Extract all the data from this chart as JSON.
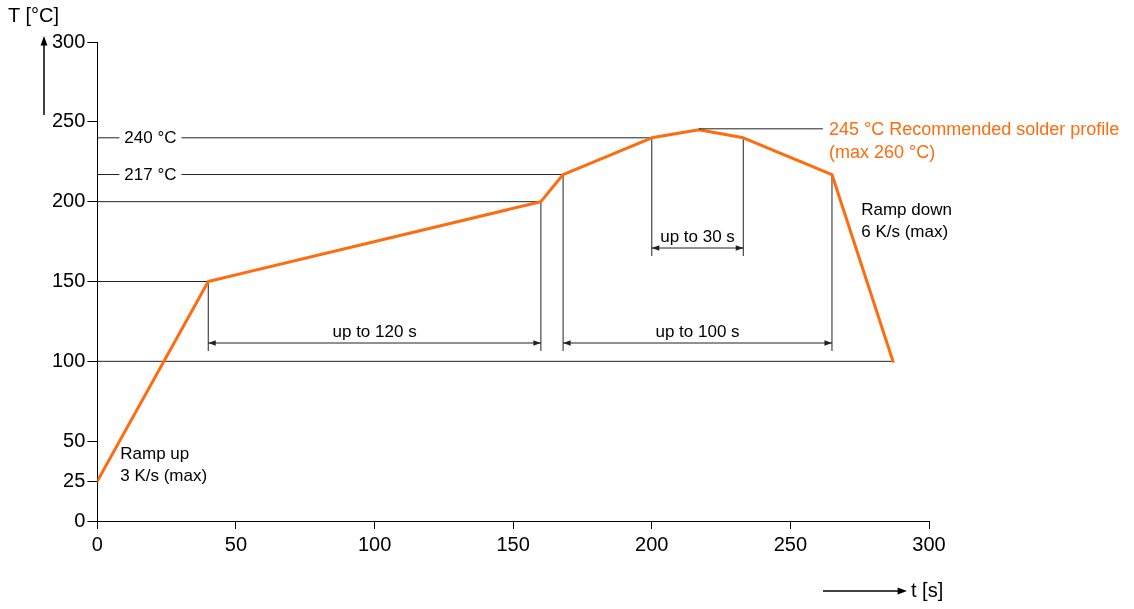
{
  "chart_data": {
    "type": "line",
    "xlabel": "t [s]",
    "ylabel": "T [°C]",
    "x": [
      0,
      40,
      160,
      168,
      200,
      217,
      233,
      265,
      287
    ],
    "series": [
      {
        "name": "245 °C Recommended solder profile\n(max 260 °C)",
        "color": "#ff6b0f",
        "values": [
          25,
          150,
          200,
          217,
          240,
          245,
          240,
          217,
          100
        ]
      }
    ],
    "xlim": [
      0,
      300
    ],
    "xticks": [
      0,
      50,
      100,
      150,
      200,
      250,
      300
    ],
    "ylim": [
      0,
      300
    ],
    "yticks": [
      0,
      25,
      50,
      100,
      150,
      200,
      250,
      300
    ],
    "ref_lines": [
      {
        "axis": "y",
        "value": 240,
        "label": "240 °C"
      },
      {
        "axis": "y",
        "value": 217,
        "label": "217 °C"
      },
      {
        "axis": "y",
        "value": 200
      },
      {
        "axis": "y",
        "value": 150
      },
      {
        "axis": "y",
        "value": 100
      },
      {
        "axis": "x",
        "value": 40
      },
      {
        "axis": "x",
        "value": 160
      },
      {
        "axis": "x",
        "value": 168
      },
      {
        "axis": "x",
        "value": 265
      },
      {
        "axis": "x",
        "value": 200
      },
      {
        "axis": "x",
        "value": 233
      }
    ],
    "annotations": [
      {
        "text": "Ramp up\n3 K/s (max)",
        "x": 3.2,
        "y": 35
      },
      {
        "text": "Ramp down\n6 K/s (max)",
        "x": 270.5,
        "y": 188
      },
      "up to 120 s",
      "up to 100 s",
      "up to 30 s"
    ],
    "marker": "none",
    "line_style": "solid"
  }
}
